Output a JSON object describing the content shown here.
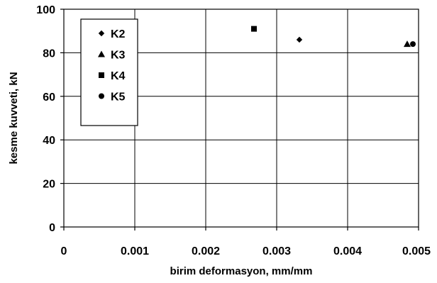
{
  "chart_data": {
    "type": "scatter",
    "title": "",
    "xlabel": "birim deformasyon, mm/mm",
    "ylabel": "kesme kuvveti, kN",
    "xlim": [
      0,
      0.005
    ],
    "ylim": [
      0,
      100
    ],
    "x_ticks": [
      "0",
      "0.001",
      "0.002",
      "0.003",
      "0.004",
      "0.005"
    ],
    "y_ticks": [
      "0",
      "20",
      "40",
      "60",
      "80",
      "100"
    ],
    "grid": true,
    "legend_position": "top-left",
    "series": [
      {
        "name": "K2",
        "marker": "diamond",
        "color": "#000000",
        "points": [
          {
            "x": 0.00332,
            "y": 86
          }
        ]
      },
      {
        "name": "K3",
        "marker": "triangle",
        "color": "#000000",
        "points": [
          {
            "x": 0.00484,
            "y": 84
          }
        ]
      },
      {
        "name": "K4",
        "marker": "square",
        "color": "#000000",
        "points": [
          {
            "x": 0.00268,
            "y": 91
          }
        ]
      },
      {
        "name": "K5",
        "marker": "circle",
        "color": "#000000",
        "points": [
          {
            "x": 0.00492,
            "y": 84
          }
        ]
      }
    ]
  }
}
